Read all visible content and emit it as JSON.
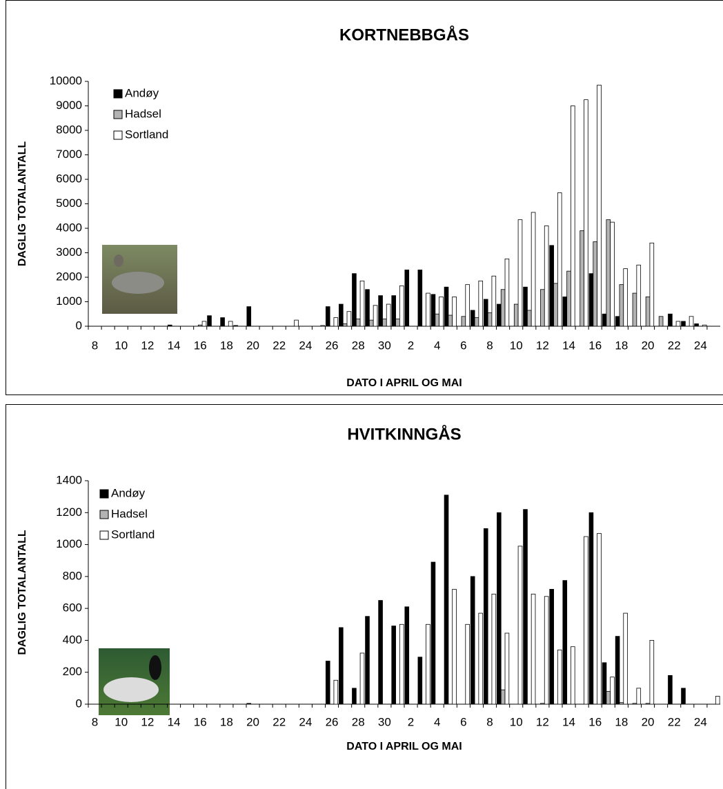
{
  "chart_data": [
    {
      "type": "bar",
      "title": "KORTNEBBGÅS",
      "x_label": "DATO I APRIL OG MAI",
      "y_label": "DAGLIG TOTALANTALL",
      "categories": [
        "8",
        null,
        "10",
        null,
        "12",
        null,
        "14",
        null,
        "16",
        null,
        "18",
        null,
        "20",
        null,
        "22",
        null,
        "24",
        null,
        "26",
        null,
        "28",
        null,
        "30",
        null,
        "2",
        null,
        "4",
        null,
        "6",
        null,
        "8",
        null,
        "10",
        null,
        "12",
        null,
        "14",
        null,
        "16",
        null,
        "18",
        null,
        "20",
        null,
        "22",
        null,
        "24",
        null
      ],
      "series": [
        {
          "name": "Andøy",
          "color": "#000000",
          "values": [
            0,
            0,
            0,
            0,
            0,
            0,
            50,
            0,
            0,
            430,
            350,
            30,
            800,
            0,
            0,
            0,
            0,
            0,
            800,
            900,
            2150,
            1500,
            1250,
            1250,
            2300,
            2300,
            1300,
            1600,
            0,
            650,
            1100,
            900,
            0,
            1600,
            0,
            3300,
            1200,
            0,
            2150,
            500,
            400,
            0,
            0,
            0,
            500,
            200,
            100,
            0
          ]
        },
        {
          "name": "Hadsel",
          "color": "#b3b3b3",
          "values": [
            0,
            0,
            0,
            0,
            0,
            0,
            0,
            0,
            50,
            0,
            0,
            0,
            0,
            0,
            0,
            0,
            0,
            0,
            0,
            100,
            300,
            250,
            300,
            300,
            0,
            0,
            500,
            450,
            400,
            350,
            550,
            1500,
            900,
            650,
            1500,
            1750,
            2250,
            3900,
            3450,
            4350,
            1700,
            1350,
            1200,
            400,
            0,
            0,
            0,
            0
          ]
        },
        {
          "name": "Sortland",
          "color": "#ffffff",
          "values": [
            0,
            0,
            0,
            0,
            0,
            0,
            0,
            0,
            200,
            0,
            200,
            0,
            0,
            0,
            0,
            250,
            0,
            30,
            350,
            600,
            1850,
            850,
            900,
            1650,
            0,
            1350,
            1200,
            1200,
            1700,
            1850,
            2050,
            2750,
            4350,
            4650,
            4100,
            5450,
            9000,
            9250,
            9850,
            4250,
            2350,
            2500,
            3400,
            0,
            200,
            400,
            50,
            0
          ]
        }
      ],
      "ylim": [
        0,
        10000
      ],
      "yticks": [
        0,
        1000,
        2000,
        3000,
        4000,
        5000,
        6000,
        7000,
        8000,
        9000,
        10000
      ],
      "legend": "upper left"
    },
    {
      "type": "bar",
      "title": "HVITKINNGÅS",
      "x_label": "DATO I APRIL OG MAI",
      "y_label": "DAGLIG TOTALANTALL",
      "categories": [
        "8",
        null,
        "10",
        null,
        "12",
        null,
        "14",
        null,
        "16",
        null,
        "18",
        null,
        "20",
        null,
        "22",
        null,
        "24",
        null,
        "26",
        null,
        "28",
        null,
        "30",
        null,
        "2",
        null,
        "4",
        null,
        "6",
        null,
        "8",
        null,
        "10",
        null,
        "12",
        null,
        "14",
        null,
        "16",
        null,
        "18",
        null,
        "20",
        null,
        "22",
        null,
        "24",
        null
      ],
      "series": [
        {
          "name": "Andøy",
          "color": "#000000",
          "values": [
            0,
            0,
            0,
            0,
            0,
            0,
            0,
            0,
            0,
            0,
            0,
            0,
            5,
            0,
            0,
            0,
            0,
            0,
            270,
            480,
            100,
            550,
            650,
            490,
            610,
            295,
            890,
            1310,
            0,
            800,
            1100,
            1200,
            0,
            1220,
            0,
            720,
            775,
            0,
            1200,
            260,
            425,
            0,
            0,
            0,
            180,
            100,
            0,
            0
          ]
        },
        {
          "name": "Hadsel",
          "color": "#b3b3b3",
          "values": [
            0,
            0,
            0,
            0,
            0,
            0,
            0,
            0,
            0,
            0,
            0,
            0,
            0,
            0,
            0,
            0,
            0,
            0,
            0,
            0,
            0,
            0,
            0,
            0,
            0,
            0,
            0,
            0,
            0,
            0,
            0,
            90,
            0,
            0,
            5,
            0,
            0,
            0,
            0,
            80,
            10,
            5,
            5,
            0,
            0,
            0,
            0,
            0
          ]
        },
        {
          "name": "Sortland",
          "color": "#ffffff",
          "values": [
            0,
            0,
            0,
            0,
            0,
            0,
            0,
            0,
            0,
            0,
            0,
            0,
            0,
            0,
            0,
            0,
            0,
            0,
            150,
            0,
            320,
            0,
            0,
            500,
            0,
            500,
            0,
            720,
            500,
            570,
            690,
            445,
            990,
            690,
            675,
            340,
            360,
            1050,
            1070,
            170,
            570,
            100,
            400,
            0,
            0,
            0,
            0,
            50
          ]
        }
      ],
      "ylim": [
        0,
        1400
      ],
      "yticks": [
        0,
        200,
        400,
        600,
        800,
        1000,
        1200,
        1400
      ],
      "legend": "upper left"
    }
  ]
}
